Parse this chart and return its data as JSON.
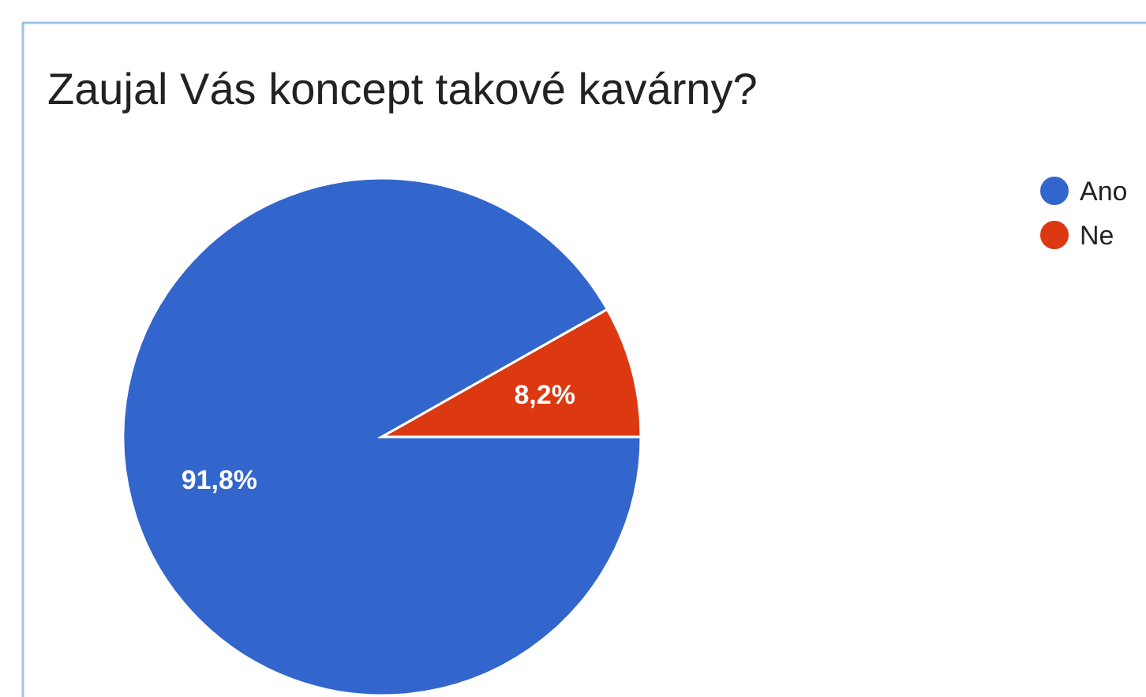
{
  "chart_data": {
    "type": "pie",
    "title": "Zaujal Vás koncept takové kavárny?",
    "categories": [
      "Ano",
      "Ne"
    ],
    "values": [
      91.8,
      8.2
    ],
    "colors": [
      "#3366cc",
      "#dc3912"
    ],
    "value_labels": [
      "91,8%",
      "8,2%"
    ],
    "legend": "right"
  }
}
